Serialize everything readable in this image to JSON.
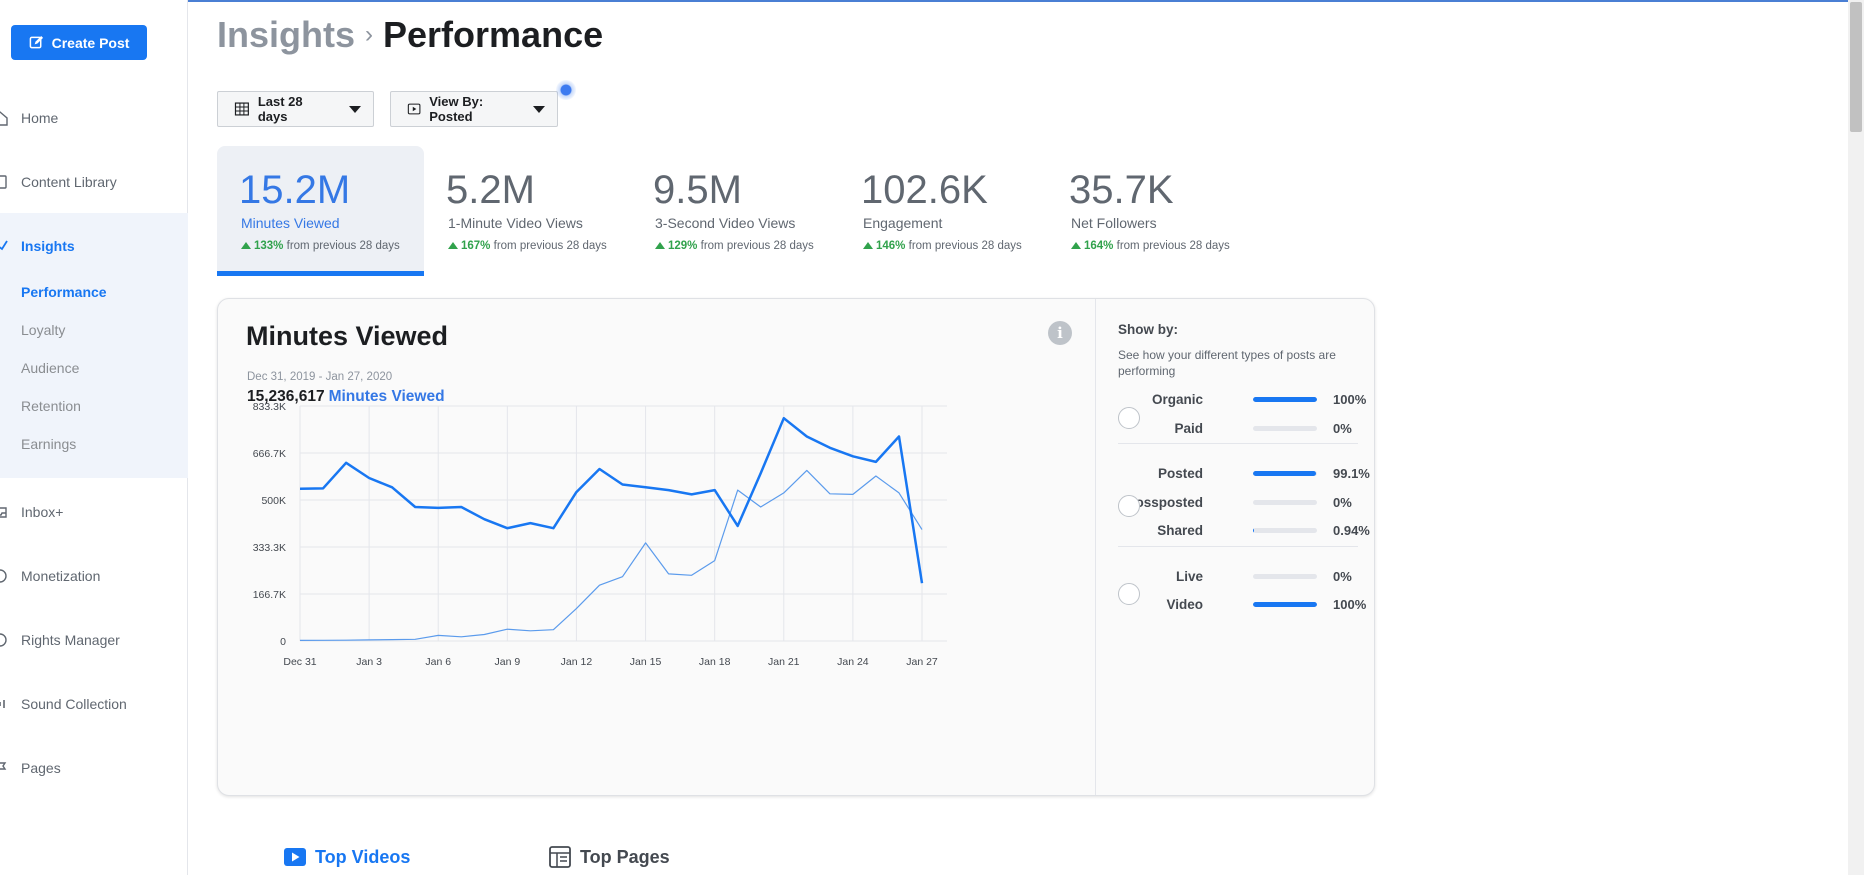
{
  "sidebar": {
    "create_post": "Create Post",
    "items": [
      {
        "label": "Home",
        "icon": "home-icon"
      },
      {
        "label": "Content Library",
        "icon": "library-icon"
      },
      {
        "label": "Insights",
        "icon": "insights-icon"
      },
      {
        "label": "Inbox+",
        "icon": "inbox-icon"
      },
      {
        "label": "Monetization",
        "icon": "monetization-icon"
      },
      {
        "label": "Rights Manager",
        "icon": "rights-icon"
      },
      {
        "label": "Sound Collection",
        "icon": "sound-icon"
      },
      {
        "label": "Pages",
        "icon": "pages-icon"
      }
    ],
    "sub_items": [
      "Performance",
      "Loyalty",
      "Audience",
      "Retention",
      "Earnings"
    ]
  },
  "header": {
    "crumb_parent": "Insights",
    "crumb_current": "Performance"
  },
  "filters": {
    "date_range": "Last 28 days",
    "view_by": "View By: Posted"
  },
  "metrics": [
    {
      "value": "15.2M",
      "label": "Minutes Viewed",
      "change": "133%",
      "suffix": "from previous 28 days"
    },
    {
      "value": "5.2M",
      "label": "1-Minute Video Views",
      "change": "167%",
      "suffix": "from previous 28 days"
    },
    {
      "value": "9.5M",
      "label": "3-Second Video Views",
      "change": "129%",
      "suffix": "from previous 28 days"
    },
    {
      "value": "102.6K",
      "label": "Engagement",
      "change": "146%",
      "suffix": "from previous 28 days"
    },
    {
      "value": "35.7K",
      "label": "Net Followers",
      "change": "164%",
      "suffix": "from previous 28 days"
    }
  ],
  "card": {
    "title": "Minutes Viewed",
    "date_range": "Dec 31, 2019 - Jan 27, 2020",
    "total_value": "15,236,617",
    "total_label": "Minutes Viewed"
  },
  "chart_data": {
    "type": "line",
    "title": "Minutes Viewed",
    "y_ticks": [
      "0",
      "166.7K",
      "333.3K",
      "500K",
      "666.7K",
      "833.3K"
    ],
    "ylim": [
      0,
      833300
    ],
    "x_ticks": [
      "Dec 31",
      "Jan 3",
      "Jan 6",
      "Jan 9",
      "Jan 12",
      "Jan 15",
      "Jan 18",
      "Jan 21",
      "Jan 24",
      "Jan 27"
    ],
    "x": [
      "Dec 31",
      "Jan 1",
      "Jan 2",
      "Jan 3",
      "Jan 4",
      "Jan 5",
      "Jan 6",
      "Jan 7",
      "Jan 8",
      "Jan 9",
      "Jan 10",
      "Jan 11",
      "Jan 12",
      "Jan 13",
      "Jan 14",
      "Jan 15",
      "Jan 16",
      "Jan 17",
      "Jan 18",
      "Jan 19",
      "Jan 20",
      "Jan 21",
      "Jan 22",
      "Jan 23",
      "Jan 24",
      "Jan 25",
      "Jan 26",
      "Jan 27"
    ],
    "grid": true,
    "series": [
      {
        "color": "#1877f2",
        "width": 2.5,
        "values": [
          540000,
          541000,
          632000,
          578000,
          545000,
          475000,
          472000,
          475000,
          432000,
          400000,
          418000,
          400000,
          528000,
          610000,
          555000,
          545000,
          535000,
          520000,
          535000,
          408000,
          595000,
          790000,
          725000,
          685000,
          655000,
          635000,
          725000,
          205000
        ]
      },
      {
        "color": "#5b9bec",
        "width": 1.2,
        "values": [
          2000,
          2500,
          3000,
          4000,
          5000,
          6000,
          20000,
          15000,
          23000,
          42000,
          36000,
          40000,
          115000,
          198000,
          228000,
          348000,
          238000,
          233000,
          285000,
          535000,
          475000,
          525000,
          605000,
          522000,
          520000,
          585000,
          525000,
          395000
        ]
      }
    ]
  },
  "show_by": {
    "title": "Show by:",
    "desc": "See how your different types of posts are performing",
    "groups": [
      [
        {
          "name": "Organic",
          "pct": "100%",
          "frac": 1.0
        },
        {
          "name": "Paid",
          "pct": "0%",
          "frac": 0
        }
      ],
      [
        {
          "name": "Posted",
          "pct": "99.1%",
          "frac": 0.991
        },
        {
          "name": "Crossposted",
          "pct": "0%",
          "frac": 0
        },
        {
          "name": "Shared",
          "pct": "0.94%",
          "frac": 0.0094
        }
      ],
      [
        {
          "name": "Live",
          "pct": "0%",
          "frac": 0
        },
        {
          "name": "Video",
          "pct": "100%",
          "frac": 1.0
        }
      ]
    ]
  },
  "bottom_tabs": [
    {
      "label": "Top Videos",
      "color": "#1877f2"
    },
    {
      "label": "Top Pages",
      "color": "#444950"
    }
  ]
}
